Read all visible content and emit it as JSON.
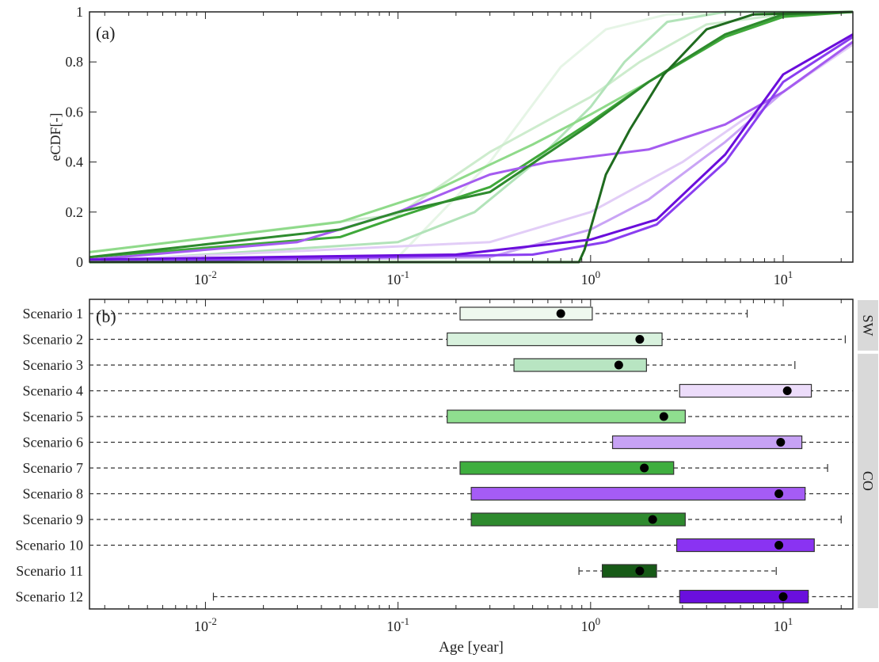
{
  "chart_data": [
    {
      "type": "line",
      "panel_label": "(a)",
      "ylabel": "eCDF[-]",
      "xscale": "log",
      "xlim": [
        0.0025,
        23
      ],
      "ylim": [
        0,
        1
      ],
      "yticks": [
        "0",
        "0.2",
        "0.4",
        "0.6",
        "0.8",
        "1"
      ],
      "xticks": [
        {
          "base": "10",
          "exp": "-2",
          "value": 0.01
        },
        {
          "base": "10",
          "exp": "-1",
          "value": 0.1
        },
        {
          "base": "10",
          "exp": "0",
          "value": 1
        },
        {
          "base": "10",
          "exp": "1",
          "value": 10
        }
      ],
      "grid": false,
      "series": [
        {
          "color": "#e6f5e6",
          "points": [
            [
              0.0025,
              0
            ],
            [
              0.1,
              0.02
            ],
            [
              0.3,
              0.4
            ],
            [
              0.7,
              0.78
            ],
            [
              1.2,
              0.93
            ],
            [
              2.5,
              0.99
            ],
            [
              6.5,
              1
            ],
            [
              23,
              1
            ]
          ]
        },
        {
          "color": "#cdeccd",
          "points": [
            [
              0.0025,
              0.04
            ],
            [
              0.1,
              0.19
            ],
            [
              0.3,
              0.44
            ],
            [
              1,
              0.66
            ],
            [
              1.8,
              0.8
            ],
            [
              4,
              0.95
            ],
            [
              10,
              0.99
            ],
            [
              23,
              1
            ]
          ]
        },
        {
          "color": "#b2e3b9",
          "points": [
            [
              0.0025,
              0
            ],
            [
              0.1,
              0.08
            ],
            [
              0.25,
              0.2
            ],
            [
              0.5,
              0.39
            ],
            [
              1,
              0.62
            ],
            [
              1.5,
              0.8
            ],
            [
              2.5,
              0.96
            ],
            [
              5,
              1
            ],
            [
              23,
              1
            ]
          ]
        },
        {
          "color": "#e2cdf7",
          "points": [
            [
              0.0025,
              0.005
            ],
            [
              0.3,
              0.08
            ],
            [
              1,
              0.2
            ],
            [
              3,
              0.4
            ],
            [
              10,
              0.68
            ],
            [
              23,
              0.87
            ]
          ]
        },
        {
          "color": "#8fda8a",
          "points": [
            [
              0.0025,
              0.04
            ],
            [
              0.05,
              0.16
            ],
            [
              0.15,
              0.28
            ],
            [
              0.5,
              0.47
            ],
            [
              1,
              0.59
            ],
            [
              2,
              0.72
            ],
            [
              5,
              0.91
            ],
            [
              10,
              0.99
            ],
            [
              23,
              1
            ]
          ]
        },
        {
          "color": "#c9a4f5",
          "points": [
            [
              0.0025,
              0
            ],
            [
              0.3,
              0.02
            ],
            [
              1,
              0.13
            ],
            [
              2,
              0.25
            ],
            [
              5,
              0.48
            ],
            [
              10,
              0.68
            ],
            [
              23,
              0.88
            ]
          ]
        },
        {
          "color": "#3fa83a",
          "points": [
            [
              0.0025,
              0.02
            ],
            [
              0.05,
              0.1
            ],
            [
              0.1,
              0.18
            ],
            [
              0.3,
              0.3
            ],
            [
              1,
              0.56
            ],
            [
              2,
              0.72
            ],
            [
              5,
              0.9
            ],
            [
              10,
              0.98
            ],
            [
              23,
              1
            ]
          ]
        },
        {
          "color": "#a55cf0",
          "points": [
            [
              0.0025,
              0.01
            ],
            [
              0.03,
              0.08
            ],
            [
              0.1,
              0.2
            ],
            [
              0.3,
              0.35
            ],
            [
              0.6,
              0.4
            ],
            [
              2,
              0.45
            ],
            [
              5,
              0.55
            ],
            [
              10,
              0.68
            ],
            [
              23,
              0.88
            ]
          ]
        },
        {
          "color": "#2e8b2e",
          "points": [
            [
              0.0025,
              0.02
            ],
            [
              0.05,
              0.13
            ],
            [
              0.1,
              0.2
            ],
            [
              0.3,
              0.28
            ],
            [
              1,
              0.55
            ],
            [
              2,
              0.72
            ],
            [
              5,
              0.91
            ],
            [
              10,
              0.99
            ],
            [
              23,
              1
            ]
          ]
        },
        {
          "color": "#8a3ef0",
          "points": [
            [
              0.0025,
              0
            ],
            [
              0.5,
              0.03
            ],
            [
              1.2,
              0.08
            ],
            [
              2.2,
              0.15
            ],
            [
              5,
              0.4
            ],
            [
              10,
              0.72
            ],
            [
              23,
              0.9
            ]
          ]
        },
        {
          "color": "#1f6b1f",
          "points": [
            [
              0.0025,
              0
            ],
            [
              0.87,
              0
            ],
            [
              0.93,
              0.05
            ],
            [
              1.2,
              0.35
            ],
            [
              1.6,
              0.53
            ],
            [
              2.4,
              0.75
            ],
            [
              4,
              0.93
            ],
            [
              7,
              0.99
            ],
            [
              23,
              1
            ]
          ]
        },
        {
          "color": "#6a0ddb",
          "points": [
            [
              0.0025,
              0.01
            ],
            [
              0.2,
              0.03
            ],
            [
              1,
              0.09
            ],
            [
              2.2,
              0.17
            ],
            [
              5,
              0.43
            ],
            [
              10,
              0.75
            ],
            [
              23,
              0.91
            ]
          ]
        }
      ]
    },
    {
      "type": "boxplot",
      "panel_label": "(b)",
      "xlabel": "Age [year]",
      "xscale": "log",
      "xlim": [
        0.0025,
        23
      ],
      "xticks": [
        {
          "base": "10",
          "exp": "-2",
          "value": 0.01
        },
        {
          "base": "10",
          "exp": "-1",
          "value": 0.1
        },
        {
          "base": "10",
          "exp": "0",
          "value": 1
        },
        {
          "base": "10",
          "exp": "1",
          "value": 10
        }
      ],
      "groups": [
        {
          "label": "SW",
          "from": 0,
          "to": 1
        },
        {
          "label": "CO",
          "from": 2,
          "to": 11
        }
      ],
      "boxes": [
        {
          "label": "Scenario 1",
          "color": "#eef8ee",
          "whisker_low": 0.0025,
          "q1": 0.21,
          "median": 0.7,
          "q3": 1.02,
          "whisker_high": 6.5
        },
        {
          "label": "Scenario 2",
          "color": "#d8f1dd",
          "whisker_low": 0.0025,
          "q1": 0.18,
          "median": 1.8,
          "q3": 2.35,
          "whisker_high": 21
        },
        {
          "label": "Scenario 3",
          "color": "#b8e5c2",
          "whisker_low": 0.0025,
          "q1": 0.4,
          "median": 1.4,
          "q3": 1.95,
          "whisker_high": 11.5
        },
        {
          "label": "Scenario 4",
          "color": "#ecdcfa",
          "whisker_low": 0.0025,
          "q1": 2.9,
          "median": 10.5,
          "q3": 14,
          "whisker_high": 23
        },
        {
          "label": "Scenario 5",
          "color": "#8fde8f",
          "whisker_low": 0.0025,
          "q1": 0.18,
          "median": 2.4,
          "q3": 3.1,
          "whisker_high": 23
        },
        {
          "label": "Scenario 6",
          "color": "#c7a2f5",
          "whisker_low": 0.0025,
          "q1": 1.3,
          "median": 9.7,
          "q3": 12.5,
          "whisker_high": 23
        },
        {
          "label": "Scenario 7",
          "color": "#3fae3f",
          "whisker_low": 0.0025,
          "q1": 0.21,
          "median": 1.9,
          "q3": 2.7,
          "whisker_high": 17
        },
        {
          "label": "Scenario 8",
          "color": "#a55cf5",
          "whisker_low": 0.0025,
          "q1": 0.24,
          "median": 9.5,
          "q3": 13,
          "whisker_high": 23
        },
        {
          "label": "Scenario 9",
          "color": "#2e8a2e",
          "whisker_low": 0.0025,
          "q1": 0.24,
          "median": 2.1,
          "q3": 3.1,
          "whisker_high": 20
        },
        {
          "label": "Scenario 10",
          "color": "#8a33f2",
          "whisker_low": 0.0025,
          "q1": 2.8,
          "median": 9.5,
          "q3": 14.5,
          "whisker_high": 23
        },
        {
          "label": "Scenario 11",
          "color": "#175a17",
          "whisker_low": 0.87,
          "q1": 1.15,
          "median": 1.8,
          "q3": 2.2,
          "whisker_high": 9.2
        },
        {
          "label": "Scenario 12",
          "color": "#6a0fdd",
          "whisker_low": 0.011,
          "q1": 2.9,
          "median": 10,
          "q3": 13.5,
          "whisker_high": 23
        }
      ]
    }
  ]
}
